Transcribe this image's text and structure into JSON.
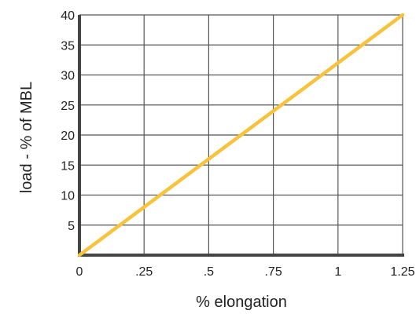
{
  "chart_data": {
    "type": "line",
    "xlabel": "% elongation",
    "ylabel": "load - % of MBL",
    "xlim": [
      0,
      1.25
    ],
    "ylim": [
      0,
      40
    ],
    "x_ticks": [
      {
        "value": 0,
        "label": "0"
      },
      {
        "value": 0.25,
        "label": ".25"
      },
      {
        "value": 0.5,
        "label": ".5"
      },
      {
        "value": 0.75,
        "label": ".75"
      },
      {
        "value": 1,
        "label": "1"
      },
      {
        "value": 1.25,
        "label": "1.25"
      }
    ],
    "y_ticks": [
      {
        "value": 5,
        "label": "5"
      },
      {
        "value": 10,
        "label": "10"
      },
      {
        "value": 15,
        "label": "15"
      },
      {
        "value": 20,
        "label": "20"
      },
      {
        "value": 25,
        "label": "25"
      },
      {
        "value": 30,
        "label": "30"
      },
      {
        "value": 35,
        "label": "35"
      },
      {
        "value": 40,
        "label": "40"
      }
    ],
    "grid": true,
    "series": [
      {
        "x": [
          0,
          1.25
        ],
        "y": [
          0,
          40
        ],
        "color": "#F7C23C"
      }
    ]
  }
}
